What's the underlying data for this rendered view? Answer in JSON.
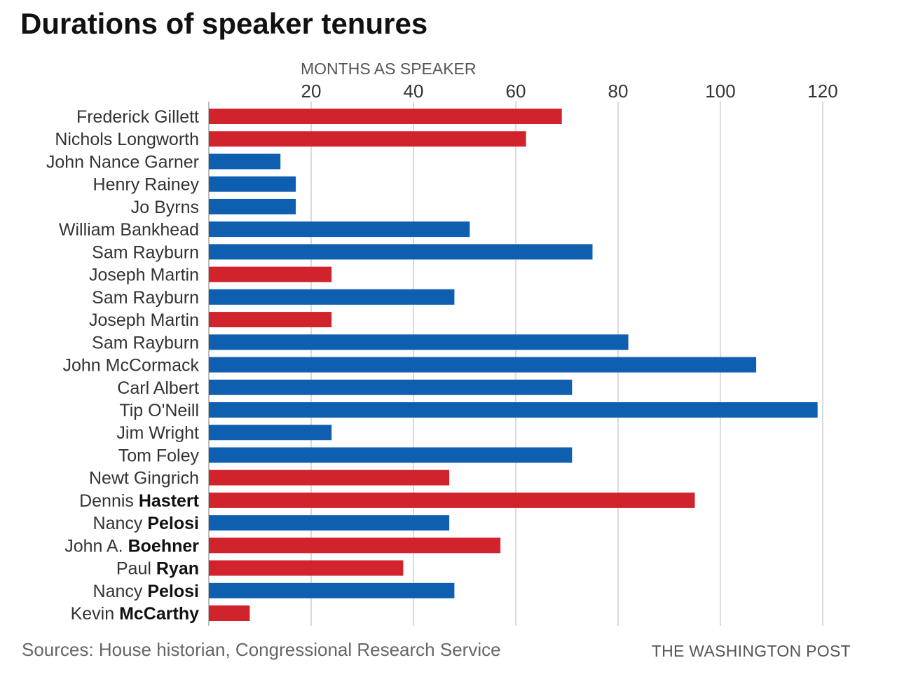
{
  "title": "Durations of speaker tenures",
  "sources": "Sources: House historian, Congressional Research Service",
  "credit": "THE WASHINGTON POST",
  "chart_data": {
    "type": "bar",
    "orientation": "horizontal",
    "title": "Durations of speaker tenures",
    "xlabel": "MONTHS AS SPEAKER",
    "xlim": [
      0,
      120
    ],
    "xticks": [
      20,
      40,
      60,
      80,
      100,
      120
    ],
    "grid": true,
    "colors": {
      "Republican": "#d0232b",
      "Democrat": "#0f5fb0"
    },
    "categories": [
      {
        "first": "Frederick Gillett",
        "last": "",
        "party": "Republican",
        "value": 69
      },
      {
        "first": "Nichols Longworth",
        "last": "",
        "party": "Republican",
        "value": 62
      },
      {
        "first": "John Nance Garner",
        "last": "",
        "party": "Democrat",
        "value": 14
      },
      {
        "first": "Henry Rainey",
        "last": "",
        "party": "Democrat",
        "value": 17
      },
      {
        "first": "Jo Byrns",
        "last": "",
        "party": "Democrat",
        "value": 17
      },
      {
        "first": "William Bankhead",
        "last": "",
        "party": "Democrat",
        "value": 51
      },
      {
        "first": "Sam Rayburn",
        "last": "",
        "party": "Democrat",
        "value": 75
      },
      {
        "first": "Joseph Martin",
        "last": "",
        "party": "Republican",
        "value": 24
      },
      {
        "first": "Sam Rayburn",
        "last": "",
        "party": "Democrat",
        "value": 48
      },
      {
        "first": "Joseph Martin",
        "last": "",
        "party": "Republican",
        "value": 24
      },
      {
        "first": "Sam Rayburn",
        "last": "",
        "party": "Democrat",
        "value": 82
      },
      {
        "first": "John McCormack",
        "last": "",
        "party": "Democrat",
        "value": 107
      },
      {
        "first": "Carl Albert",
        "last": "",
        "party": "Democrat",
        "value": 71
      },
      {
        "first": "Tip O'Neill",
        "last": "",
        "party": "Democrat",
        "value": 119
      },
      {
        "first": "Jim Wright",
        "last": "",
        "party": "Democrat",
        "value": 24
      },
      {
        "first": "Tom Foley",
        "last": "",
        "party": "Democrat",
        "value": 71
      },
      {
        "first": "Newt Gingrich",
        "last": "",
        "party": "Republican",
        "value": 47
      },
      {
        "first": "Dennis ",
        "last": "Hastert",
        "party": "Republican",
        "value": 95
      },
      {
        "first": "Nancy ",
        "last": "Pelosi",
        "party": "Democrat",
        "value": 47
      },
      {
        "first": "John A. ",
        "last": "Boehner",
        "party": "Republican",
        "value": 57
      },
      {
        "first": "Paul ",
        "last": "Ryan",
        "party": "Republican",
        "value": 38
      },
      {
        "first": "Nancy ",
        "last": "Pelosi",
        "party": "Democrat",
        "value": 48
      },
      {
        "first": "Kevin ",
        "last": "McCarthy",
        "party": "Republican",
        "value": 8
      }
    ]
  }
}
